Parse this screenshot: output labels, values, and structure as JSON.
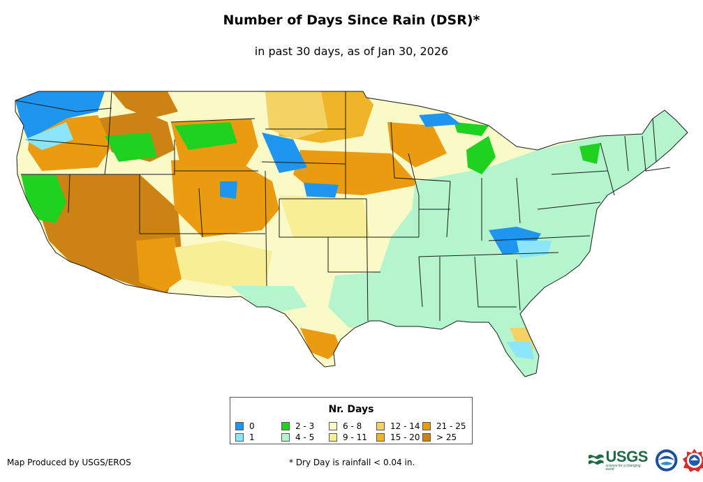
{
  "title": "Number of Days Since Rain (DSR)*",
  "subtitle": "in past 30 days, as of Jan 30, 2026",
  "legend": {
    "title": "Nr. Days",
    "items": [
      {
        "label": "0",
        "color": "#1e96f0"
      },
      {
        "label": "2 - 3",
        "color": "#1fd21f"
      },
      {
        "label": "6 - 8",
        "color": "#fafac8"
      },
      {
        "label": "12 - 14",
        "color": "#f5d264"
      },
      {
        "label": "21 - 25",
        "color": "#eb9b0f"
      },
      {
        "label": "1",
        "color": "#8ce6fa"
      },
      {
        "label": "4 - 5",
        "color": "#b4f5cd"
      },
      {
        "label": "9 - 11",
        "color": "#f8ee96"
      },
      {
        "label": "15 - 20",
        "color": "#f0b428"
      },
      {
        "label": "> 25",
        "color": "#cd8214"
      }
    ]
  },
  "credit": "Map Produced by USGS/EROS",
  "footnote": "* Dry Day is rainfall < 0.04 in.",
  "logos": {
    "usgs": {
      "name": "USGS",
      "tagline": "science for a changing world",
      "icon": "usgs-logo"
    },
    "noaa": {
      "icon": "noaa-logo"
    },
    "nws": {
      "icon": "nws-logo"
    }
  }
}
